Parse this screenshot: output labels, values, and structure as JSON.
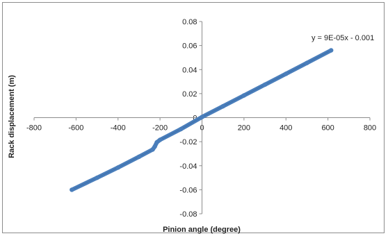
{
  "chart_data": {
    "type": "scatter",
    "title": "",
    "xlabel": "Pinion angle (degree)",
    "ylabel": "Rack displacement (m)",
    "xlim": [
      -800,
      800
    ],
    "ylim": [
      -0.08,
      0.08
    ],
    "x_ticks": [
      -800,
      -600,
      -400,
      -200,
      0,
      200,
      400,
      600,
      800
    ],
    "y_ticks": [
      -0.08,
      -0.06,
      -0.04,
      -0.02,
      0,
      0.02,
      0.04,
      0.06,
      0.08
    ],
    "x_tick_labels": [
      "-800",
      "-600",
      "-400",
      "-200",
      "0",
      "200",
      "400",
      "600",
      "800"
    ],
    "y_tick_labels": [
      "-0.08",
      "-0.06",
      "-0.04",
      "-0.02",
      "0",
      "0.02",
      "0.04",
      "0.06",
      "0.08"
    ],
    "grid": false,
    "legend": "none",
    "series": [
      {
        "x": [
          -620,
          -500,
          -400,
          -300,
          -235,
          -225,
          -215,
          -200,
          -100,
          0,
          100,
          200,
          300,
          400,
          500,
          615
        ],
        "y": [
          -0.06,
          -0.05,
          -0.0415,
          -0.0325,
          -0.0265,
          -0.024,
          -0.0205,
          -0.0185,
          -0.0095,
          0.0005,
          0.0095,
          0.0185,
          0.0275,
          0.0365,
          0.0455,
          0.056
        ],
        "color": "#4a7ebb"
      }
    ],
    "trendline_equation": "y = 9E-05x - 0.001"
  }
}
